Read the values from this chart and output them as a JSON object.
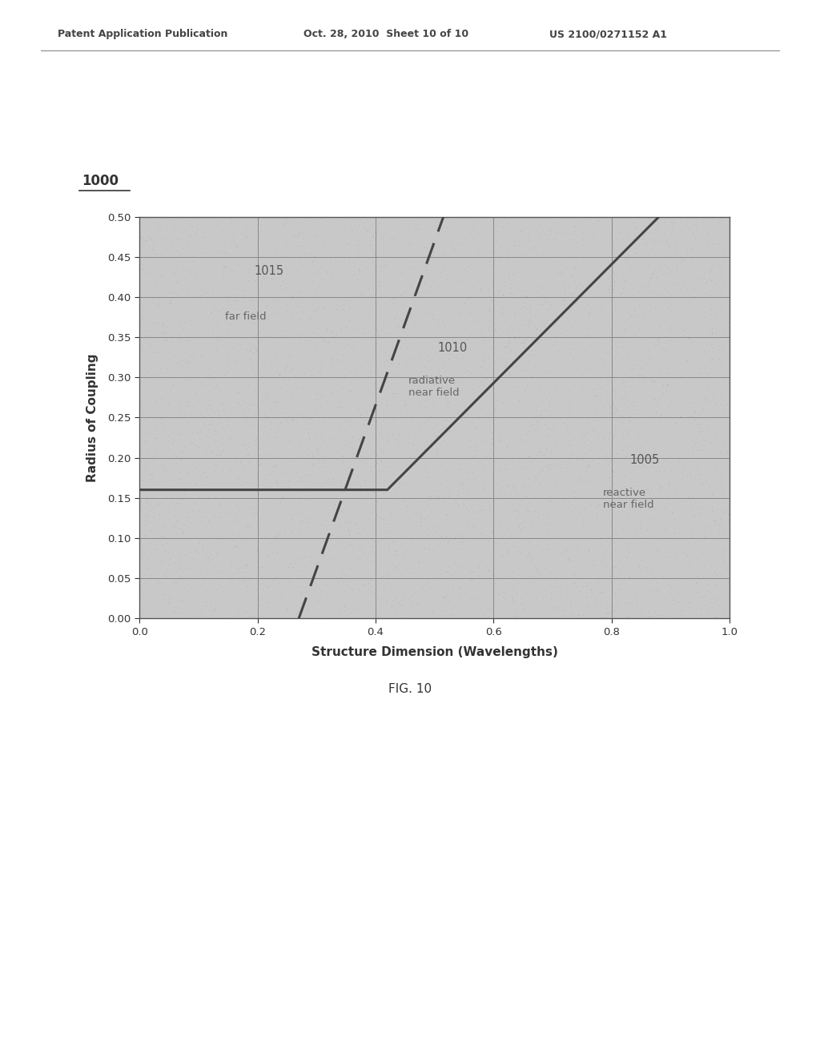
{
  "header_left": "Patent Application Publication",
  "header_center": "Oct. 28, 2010  Sheet 10 of 10",
  "header_right": "US 2100/0271152 A1",
  "figure_label": "1000",
  "figure_caption": "FIG. 10",
  "xlabel": "Structure Dimension (Wavelengths)",
  "ylabel": "Radius of Coupling",
  "xlim": [
    0,
    1
  ],
  "ylim": [
    0,
    0.5
  ],
  "bg_color": "#c8c8c8",
  "line_color": "#444444",
  "label_1005": "1005",
  "label_1005_sub": "reactive\nnear field",
  "label_1010": "1010",
  "label_1010_sub": "radiative\nnear field",
  "label_1015": "1015",
  "label_1015_sub": "far field",
  "line1005_x": [
    0.0,
    0.42,
    0.88
  ],
  "line1005_y": [
    0.16,
    0.16,
    0.5
  ],
  "line1010_x": [
    0.0,
    0.42,
    0.88
  ],
  "line1010_y": [
    0.16,
    0.16,
    0.5
  ],
  "line1015_x": [
    0.27,
    0.52
  ],
  "line1015_y": [
    0.0,
    0.5
  ]
}
